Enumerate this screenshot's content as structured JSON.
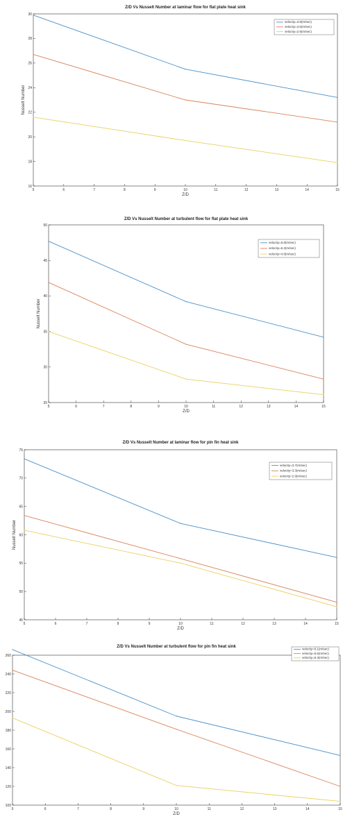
{
  "chart_data": [
    {
      "type": "line",
      "title": "Z/D  Vs Nusselt Number  at laminar flow for flat plate heat sink",
      "xlabel": "Z/D",
      "ylabel": "Nusselt Number",
      "xlim": [
        5,
        15
      ],
      "ylim": [
        16,
        30
      ],
      "xticks": [
        5,
        6,
        7,
        8,
        9,
        10,
        11,
        12,
        13,
        14,
        15
      ],
      "yticks": [
        16,
        18,
        20,
        22,
        24,
        26,
        28,
        30
      ],
      "legend_position": "top-right",
      "x": [
        5,
        10,
        15
      ],
      "series": [
        {
          "name": "velocity=3.8(m/sec)",
          "values": [
            29.9,
            25.5,
            23.2
          ],
          "color": "#4a90c8"
        },
        {
          "name": "velocity=3.5(m/sec)",
          "values": [
            26.7,
            23.0,
            21.2
          ],
          "color": "#d9825b"
        },
        {
          "name": "velocity=2.8(m/sec)",
          "values": [
            21.6,
            19.7,
            17.9
          ],
          "color": "#e8d060"
        }
      ]
    },
    {
      "type": "line",
      "title": "Z/D Vs Nusselt Number  at turbulent flow for flat plate heat sink",
      "xlabel": "Z/D",
      "ylabel": "Nusselt Number",
      "xlim": [
        5,
        15
      ],
      "ylim": [
        25,
        50
      ],
      "xticks": [
        5,
        6,
        7,
        8,
        9,
        10,
        11,
        12,
        13,
        14,
        15
      ],
      "yticks": [
        25,
        30,
        35,
        40,
        45,
        50
      ],
      "legend_position": "top-right",
      "x": [
        5,
        10,
        15
      ],
      "series": [
        {
          "name": "velocity=5.8(m/sec)",
          "values": [
            47.7,
            39.2,
            34.2
          ],
          "color": "#4a90c8"
        },
        {
          "name": "velocity=5.2(m/sec)",
          "values": [
            41.9,
            33.2,
            28.3
          ],
          "color": "#d9825b"
        },
        {
          "name": "velocity=4.8(m/sec)",
          "values": [
            35.0,
            28.3,
            26.1
          ],
          "color": "#e8d060"
        }
      ]
    },
    {
      "type": "line",
      "title": "Z/D Vs Nusselt Number  at laminar flow for pin fin heat sink",
      "xlabel": "Z/D",
      "ylabel": "Nusselt Number",
      "xlim": [
        5,
        15
      ],
      "ylim": [
        45,
        75
      ],
      "xticks": [
        5,
        6,
        7,
        8,
        9,
        10,
        11,
        12,
        13,
        14,
        15
      ],
      "yticks": [
        45,
        50,
        55,
        60,
        65,
        70,
        75
      ],
      "legend_position": "top-right",
      "x": [
        5,
        10,
        15
      ],
      "series": [
        {
          "name": "velocity=3.7(m/sec)",
          "values": [
            73.4,
            62.0,
            56.0
          ],
          "color": "#4a90c8"
        },
        {
          "name": "velocity=3.3(m/sec)",
          "values": [
            63.4,
            55.8,
            48.1
          ],
          "color": "#d9825b"
        },
        {
          "name": "velocity=2.9(m/sec)",
          "values": [
            60.8,
            55.0,
            47.3
          ],
          "color": "#e8d060"
        }
      ]
    },
    {
      "type": "line",
      "title": "Z/D Vs Nusselt Number at turbulent flow for pin fin heat sink",
      "xlabel": "Z/D",
      "ylabel": "",
      "xlim": [
        5,
        15
      ],
      "ylim": [
        100,
        260
      ],
      "xticks": [
        5,
        6,
        7,
        8,
        9,
        10,
        11,
        12,
        13,
        14,
        15
      ],
      "yticks": [
        100,
        120,
        140,
        160,
        180,
        200,
        220,
        240,
        260
      ],
      "legend_position": "top-right",
      "x": [
        5,
        10,
        15
      ],
      "series": [
        {
          "name": "velocity=6.1(m/sec)",
          "values": [
            266,
            195,
            153
          ],
          "color": "#4a90c8"
        },
        {
          "name": "velocity=5.6(m/sec)",
          "values": [
            244,
            181,
            120
          ],
          "color": "#d9825b"
        },
        {
          "name": "velocity=5.3(m/sec)",
          "values": [
            193,
            121,
            104
          ],
          "color": "#e8d060"
        }
      ]
    }
  ]
}
